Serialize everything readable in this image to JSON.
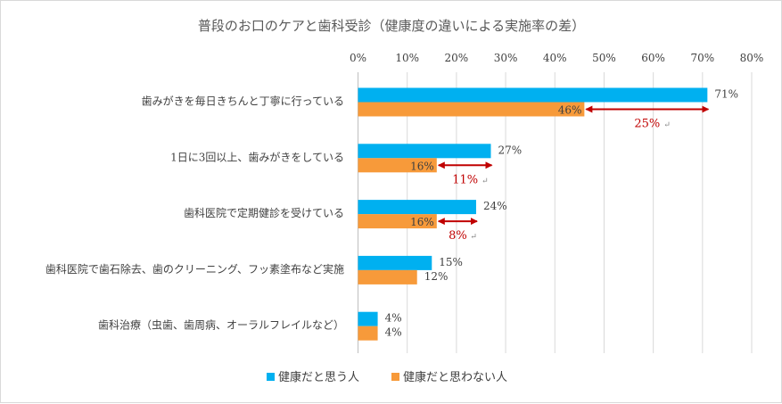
{
  "chart_data": {
    "type": "bar",
    "orientation": "horizontal",
    "title": "普段のお口のケアと歯科受診（健康度の違いによる実施率の差）",
    "categories": [
      "歯みがきを毎日きちんと丁寧に行っている",
      "1日に3回以上、歯みがきをしている",
      "歯科医院で定期健診を受けている",
      "歯科医院で歯石除去、歯のクリーニング、フッ素塗布など実施",
      "歯科治療（虫歯、歯周病、オーラルフレイルなど）"
    ],
    "series": [
      {
        "name": "健康だと思う人",
        "color": "#00b0f0",
        "values": [
          71,
          27,
          24,
          15,
          4
        ],
        "labels": [
          "71%",
          "27%",
          "24%",
          "15%",
          "4%"
        ]
      },
      {
        "name": "健康だと思わない人",
        "color": "#f79a3a",
        "values": [
          46,
          16,
          16,
          12,
          4
        ],
        "labels": [
          "46%",
          "16%",
          "16%",
          "12%",
          "4%"
        ]
      }
    ],
    "x_ticks": [
      "0%",
      "10%",
      "20%",
      "30%",
      "40%",
      "50%",
      "60%",
      "70%",
      "80%"
    ],
    "xlim": [
      0,
      80
    ],
    "grid": true,
    "legend_position": "bottom",
    "annotations": [
      {
        "category_index": 0,
        "from": 46,
        "to": 71,
        "label": "25%"
      },
      {
        "category_index": 1,
        "from": 16,
        "to": 27,
        "label": "11%"
      },
      {
        "category_index": 2,
        "from": 16,
        "to": 24,
        "label": "8%"
      }
    ],
    "annotation_color": "#c00000",
    "return_mark": "↵"
  }
}
